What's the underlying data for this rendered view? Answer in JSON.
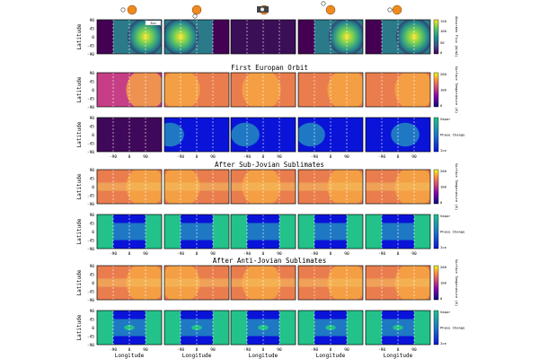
{
  "figure": {
    "titles": [
      "First Europan Orbit",
      "After Sub-Jovian Sublimates",
      "After Anti-Jovian Sublimates"
    ],
    "legend_tag": "Sun",
    "colors": {
      "vapor": "#22c28a",
      "phase": "#1f78c4",
      "ice": "#0a14d8",
      "jupiter": "#f08a1e",
      "europa": "#f2cc72",
      "arrow": "#333333"
    }
  },
  "chart_data": {
    "type": "heatmap",
    "panel_grid": {
      "rows": 7,
      "cols": 5
    },
    "xlabel": "Longitude",
    "ylabel": "Latitude",
    "xticks": [
      -90,
      0,
      90
    ],
    "yticks": [
      90,
      45,
      0,
      -45,
      -90
    ],
    "row_types": [
      "flux",
      "temp",
      "phase",
      "temp",
      "phase",
      "temp",
      "phase"
    ],
    "colorbars": [
      {
        "row": 0,
        "label": "Absorbed Flux (W/m2)",
        "ticks": [
          150,
          100,
          50,
          0
        ]
      },
      {
        "row": 1,
        "label": "Surface Temperature (K)",
        "ticks": [
          200,
          100,
          0
        ]
      },
      {
        "row": 2,
        "label": "",
        "ticks": [
          "Vapor",
          "Phase Change",
          "Ice"
        ]
      },
      {
        "row": 3,
        "label": "Surface Temperature (K)",
        "ticks": [
          200,
          100,
          0
        ]
      },
      {
        "row": 4,
        "label": "",
        "ticks": [
          "Vapor",
          "Phase Change",
          "Ice"
        ]
      },
      {
        "row": 5,
        "label": "Surface Temperature (K)",
        "ticks": [
          200,
          100,
          0
        ]
      },
      {
        "row": 6,
        "label": "",
        "ticks": [
          "Vapor",
          "Phase Change",
          "Ice"
        ]
      }
    ],
    "flux_peak_longitude": [
      90,
      -90,
      null,
      90,
      90
    ],
    "orbit_phases": [
      "phase-1",
      "phase-2",
      "phase-3 (eclipse)",
      "phase-4",
      "phase-5"
    ]
  }
}
